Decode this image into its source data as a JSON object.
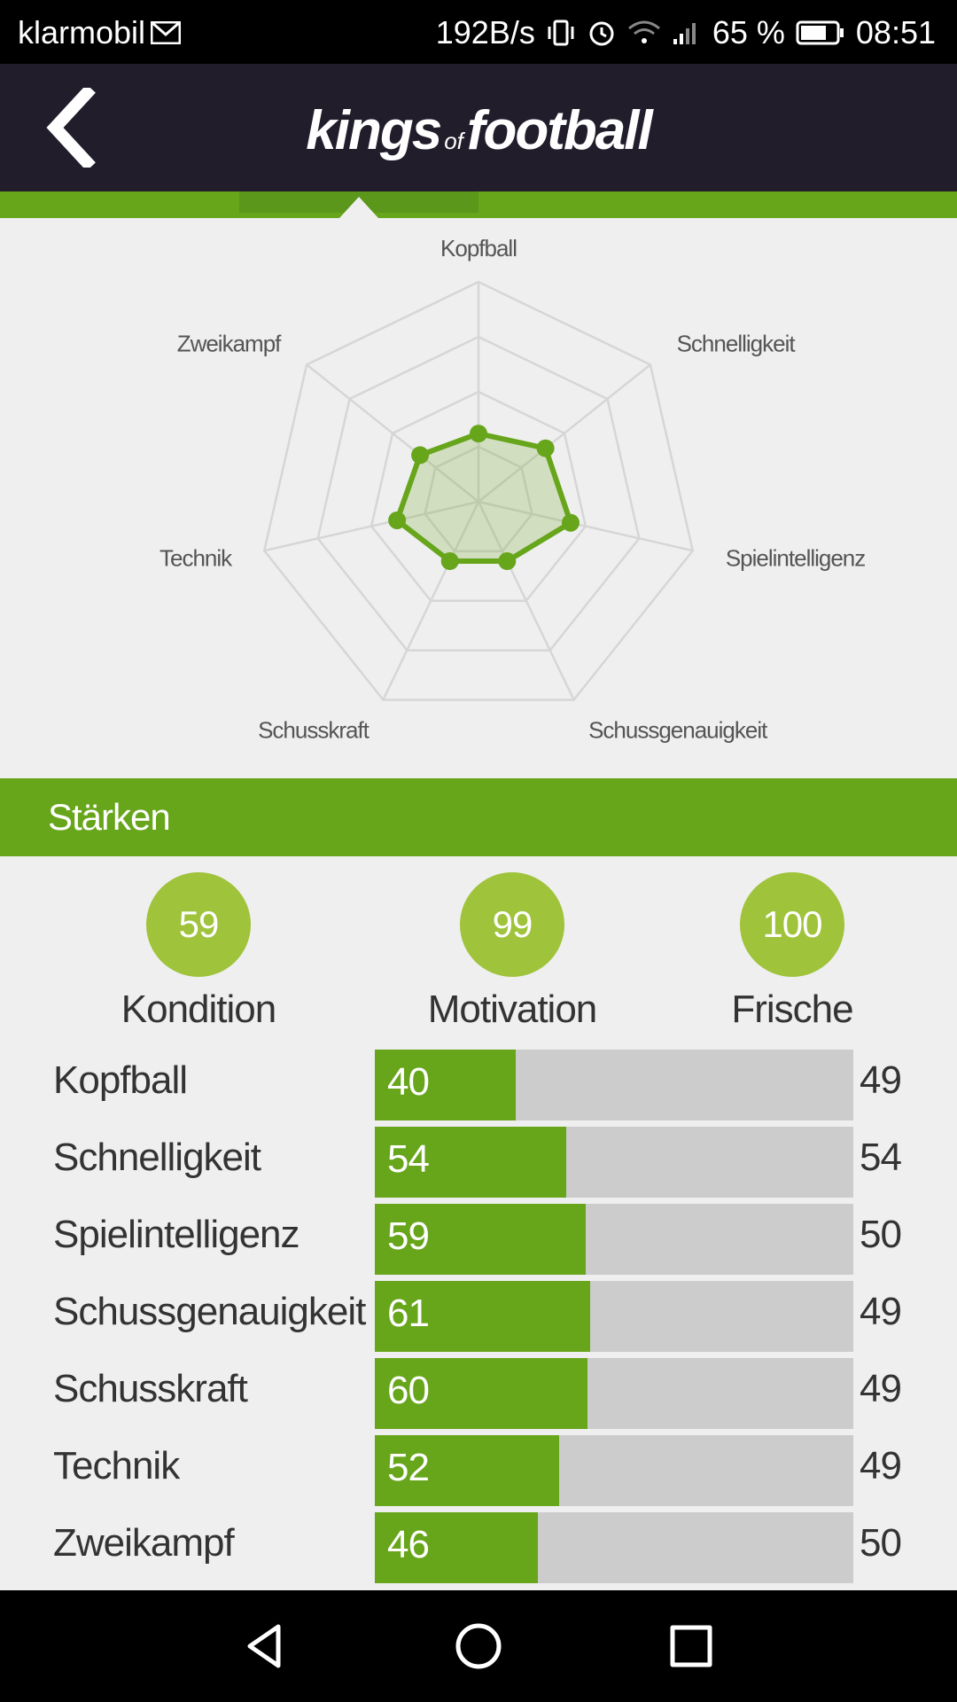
{
  "status_bar": {
    "carrier": "klarmobil",
    "net_speed": "192B/s",
    "battery": "65 %",
    "time": "08:51",
    "icons": [
      "mail-icon",
      "vibrate-icon",
      "alarm-icon",
      "wifi-icon",
      "signal-icon",
      "battery-icon"
    ]
  },
  "header": {
    "logo_part1": "kings",
    "logo_part2": "of",
    "logo_part3": "football",
    "back_icon": "chevron-left-icon"
  },
  "radar": {
    "labels": [
      "Kopfball",
      "Schnelligkeit",
      "Spielintelligenz",
      "Schussgenauigkeit",
      "Schusskraft",
      "Technik",
      "Zweikampf"
    ],
    "values": [
      31,
      39,
      43,
      30,
      30,
      38,
      34
    ],
    "max": 100,
    "rings": 4,
    "color": "#67a51b"
  },
  "section": {
    "title": "Stärken"
  },
  "stats": [
    {
      "value": "59",
      "label": "Kondition"
    },
    {
      "value": "99",
      "label": "Motivation"
    },
    {
      "value": "100",
      "label": "Frische"
    }
  ],
  "skills": [
    {
      "name": "Kopfball",
      "value": 40,
      "compare": "49"
    },
    {
      "name": "Schnelligkeit",
      "value": 54,
      "compare": "54"
    },
    {
      "name": "Spielintelligenz",
      "value": 59,
      "compare": "50"
    },
    {
      "name": "Schussgenauigkeit",
      "value": 61,
      "compare": "49"
    },
    {
      "name": "Schusskraft",
      "value": 60,
      "compare": "49"
    },
    {
      "name": "Technik",
      "value": 52,
      "compare": "49"
    },
    {
      "name": "Zweikampf",
      "value": 46,
      "compare": "50"
    }
  ],
  "skill_bar_fill_fraction": [
    0.295,
    0.4,
    0.44,
    0.45,
    0.445,
    0.385,
    0.34
  ],
  "colors": {
    "accent": "#67a51b",
    "header_bg": "#221d2b",
    "circle": "#9fc33b",
    "bar_bg": "#cccccc"
  },
  "nav": {
    "back": "triangle-back-icon",
    "home": "circle-home-icon",
    "recents": "square-recents-icon"
  }
}
